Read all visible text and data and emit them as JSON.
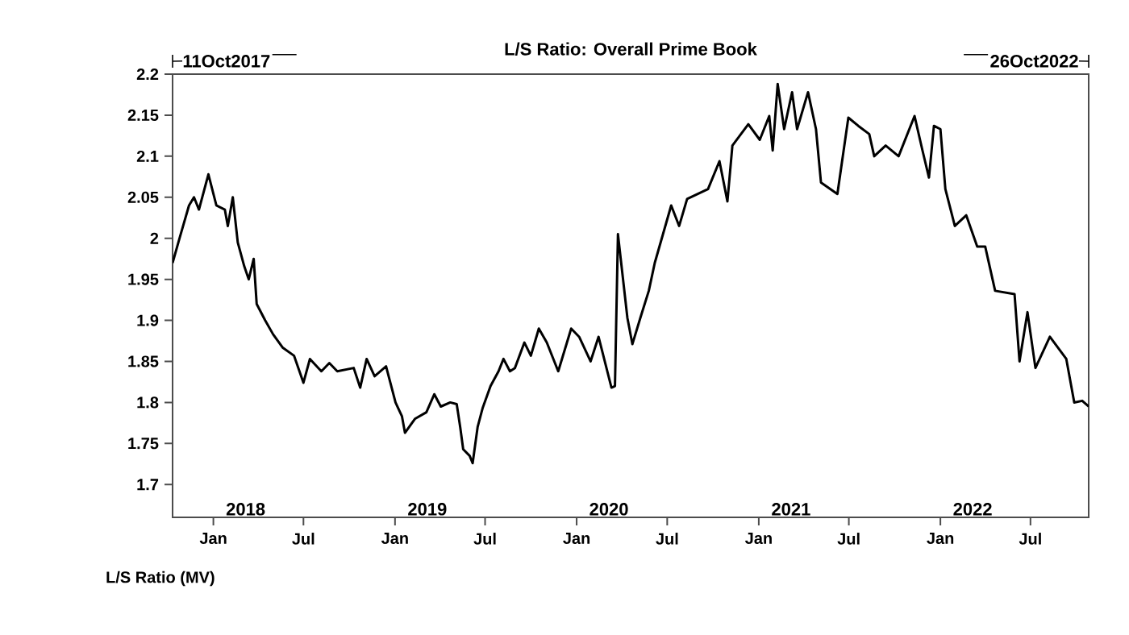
{
  "chart_data": {
    "type": "line",
    "title": "L/S Ratio: Overall Prime Book",
    "ylabel": "L/S Ratio (MV)",
    "annotations": [
      "11Oct2017",
      "26Oct2022",
      "2018",
      "2019",
      "2020",
      "2021",
      "2022"
    ],
    "xlim": [
      "2017-10-11",
      "2022-10-26"
    ],
    "ylim": [
      1.66,
      2.2
    ],
    "xticks": [
      {
        "value": "2018-01-01",
        "label": "Jan"
      },
      {
        "value": "2018-07-01",
        "label": "Jul"
      },
      {
        "value": "2019-01-01",
        "label": "Jan"
      },
      {
        "value": "2019-07-01",
        "label": "Jul"
      },
      {
        "value": "2020-01-01",
        "label": "Jan"
      },
      {
        "value": "2020-07-01",
        "label": "Jul"
      },
      {
        "value": "2021-01-01",
        "label": "Jan"
      },
      {
        "value": "2021-07-01",
        "label": "Jul"
      },
      {
        "value": "2022-01-01",
        "label": "Jan"
      },
      {
        "value": "2022-07-01",
        "label": "Jul"
      }
    ],
    "yticks": [
      {
        "value": 1.7,
        "label": "1.7"
      },
      {
        "value": 1.75,
        "label": "1.75"
      },
      {
        "value": 1.8,
        "label": "1.8"
      },
      {
        "value": 1.85,
        "label": "1.85"
      },
      {
        "value": 1.9,
        "label": "1.9"
      },
      {
        "value": 1.95,
        "label": "1.95"
      },
      {
        "value": 2.0,
        "label": "2"
      },
      {
        "value": 2.05,
        "label": "2.05"
      },
      {
        "value": 2.1,
        "label": "2.1"
      },
      {
        "value": 2.15,
        "label": "2.15"
      },
      {
        "value": 2.2,
        "label": "2.2"
      }
    ],
    "marker": "none",
    "line_style": "solid",
    "series": [
      {
        "color": "#000000",
        "x": [
          "2017-10-11",
          "2017-10-25",
          "2017-11-13",
          "2017-11-23",
          "2017-12-03",
          "2017-12-22",
          "2018-01-07",
          "2018-01-24",
          "2018-01-30",
          "2018-02-09",
          "2018-02-19",
          "2018-03-04",
          "2018-03-13",
          "2018-03-23",
          "2018-03-29",
          "2018-04-15",
          "2018-05-01",
          "2018-05-20",
          "2018-06-12",
          "2018-07-01",
          "2018-07-14",
          "2018-08-06",
          "2018-08-22",
          "2018-09-07",
          "2018-10-10",
          "2018-10-23",
          "2018-11-05",
          "2018-11-21",
          "2018-12-14",
          "2018-12-27",
          "2019-01-02",
          "2019-01-15",
          "2019-01-21",
          "2019-02-10",
          "2019-03-05",
          "2019-03-21",
          "2019-04-03",
          "2019-04-22",
          "2019-05-05",
          "2019-05-12",
          "2019-05-18",
          "2019-05-31",
          "2019-06-06",
          "2019-06-16",
          "2019-06-26",
          "2019-07-12",
          "2019-07-28",
          "2019-08-07",
          "2019-08-20",
          "2019-08-30",
          "2019-09-18",
          "2019-10-01",
          "2019-10-17",
          "2019-11-02",
          "2019-11-25",
          "2019-12-21",
          "2020-01-06",
          "2020-01-29",
          "2020-02-14",
          "2020-03-11",
          "2020-03-18",
          "2020-03-24",
          "2020-04-12",
          "2020-04-22",
          "2020-05-08",
          "2020-05-25",
          "2020-06-06",
          "2020-07-09",
          "2020-07-25",
          "2020-08-10",
          "2020-09-21",
          "2020-10-14",
          "2020-10-30",
          "2020-11-09",
          "2020-12-11",
          "2021-01-03",
          "2021-01-22",
          "2021-01-29",
          "2021-02-08",
          "2021-02-21",
          "2021-03-09",
          "2021-03-19",
          "2021-04-10",
          "2021-04-26",
          "2021-05-06",
          "2021-06-08",
          "2021-06-30",
          "2021-07-20",
          "2021-08-11",
          "2021-08-21",
          "2021-09-13",
          "2021-10-09",
          "2021-11-10",
          "2021-11-26",
          "2021-12-09",
          "2021-12-19",
          "2022-01-01",
          "2022-01-11",
          "2022-01-30",
          "2022-02-22",
          "2022-03-16",
          "2022-04-01",
          "2022-04-21",
          "2022-05-30",
          "2022-06-09",
          "2022-06-25",
          "2022-07-11",
          "2022-08-09",
          "2022-09-11",
          "2022-09-27",
          "2022-10-13",
          "2022-10-26"
        ],
        "values": [
          1.97,
          2.0,
          2.04,
          2.05,
          2.035,
          2.078,
          2.04,
          2.035,
          2.015,
          2.05,
          1.995,
          1.966,
          1.95,
          1.975,
          1.92,
          1.9,
          1.883,
          1.867,
          1.857,
          1.824,
          1.853,
          1.838,
          1.848,
          1.838,
          1.842,
          1.818,
          1.853,
          1.832,
          1.844,
          1.814,
          1.8,
          1.783,
          1.763,
          1.78,
          1.788,
          1.81,
          1.795,
          1.8,
          1.798,
          1.77,
          1.743,
          1.735,
          1.726,
          1.77,
          1.793,
          1.82,
          1.838,
          1.853,
          1.838,
          1.842,
          1.873,
          1.857,
          1.89,
          1.873,
          1.838,
          1.89,
          1.88,
          1.85,
          1.88,
          1.818,
          1.82,
          2.005,
          1.903,
          1.871,
          1.903,
          1.936,
          1.97,
          2.04,
          2.015,
          2.048,
          2.06,
          2.094,
          2.045,
          2.113,
          2.139,
          2.12,
          2.149,
          2.107,
          2.188,
          2.133,
          2.178,
          2.133,
          2.178,
          2.133,
          2.068,
          2.054,
          2.147,
          2.137,
          2.127,
          2.1,
          2.113,
          2.1,
          2.149,
          2.107,
          2.074,
          2.137,
          2.133,
          2.06,
          2.015,
          2.028,
          1.99,
          1.99,
          1.936,
          1.932,
          1.85,
          1.91,
          1.842,
          1.88,
          1.853,
          1.8,
          1.802,
          1.795
        ]
      }
    ]
  }
}
